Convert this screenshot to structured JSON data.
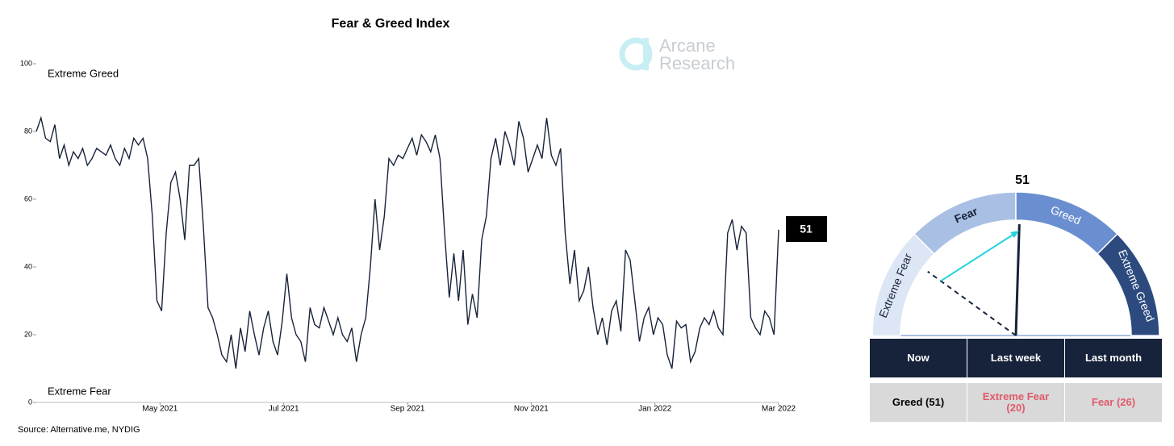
{
  "chart_data": [
    {
      "type": "line",
      "title": "Fear & Greed Index",
      "watermark": [
        "Arcane",
        "Research"
      ],
      "annotations": [
        "Extreme Greed",
        "Extreme Fear"
      ],
      "source": "Source: Alternative.me, NYDIG",
      "xlim": [
        "2021-03",
        "2022-03"
      ],
      "xticks": [
        {
          "value": "2021-05",
          "label": "May 2021"
        },
        {
          "value": "2021-07",
          "label": "Jul 2021"
        },
        {
          "value": "2021-09",
          "label": "Sep 2021"
        },
        {
          "value": "2021-11",
          "label": "Nov 2021"
        },
        {
          "value": "2022-01",
          "label": "Jan 2022"
        },
        {
          "value": "2022-03",
          "label": "Mar 2022"
        }
      ],
      "ylim": [
        0,
        100
      ],
      "yticks": [
        0,
        20,
        40,
        60,
        80,
        100
      ],
      "series": [
        {
          "name": "Fear & Greed Index",
          "color": "#17233a",
          "values": [
            80,
            84,
            78,
            77,
            82,
            72,
            76,
            70,
            74,
            72,
            75,
            70,
            72,
            75,
            74,
            73,
            76,
            72,
            70,
            75,
            72,
            78,
            76,
            78,
            72,
            55,
            30,
            27,
            50,
            65,
            68,
            60,
            48,
            70,
            70,
            72,
            52,
            28,
            25,
            20,
            14,
            12,
            20,
            10,
            22,
            15,
            27,
            20,
            14,
            22,
            27,
            18,
            14,
            24,
            38,
            25,
            20,
            18,
            12,
            28,
            23,
            22,
            28,
            24,
            20,
            25,
            20,
            18,
            22,
            12,
            20,
            25,
            40,
            60,
            45,
            55,
            72,
            70,
            73,
            72,
            75,
            78,
            73,
            79,
            77,
            74,
            79,
            72,
            50,
            31,
            44,
            30,
            45,
            23,
            32,
            25,
            48,
            55,
            72,
            78,
            70,
            80,
            76,
            70,
            83,
            78,
            68,
            72,
            76,
            72,
            84,
            73,
            70,
            75,
            50,
            35,
            45,
            30,
            33,
            40,
            28,
            20,
            25,
            17,
            27,
            30,
            21,
            45,
            42,
            30,
            18,
            25,
            28,
            20,
            25,
            23,
            14,
            10,
            24,
            22,
            23,
            12,
            15,
            22,
            25,
            23,
            27,
            22,
            20,
            50,
            54,
            45,
            52,
            50,
            25,
            22,
            20,
            27,
            25,
            20,
            51
          ]
        }
      ]
    },
    {
      "type": "gauge",
      "value": 51,
      "last_week": 20,
      "range": [
        0,
        100
      ],
      "bands": [
        {
          "name": "Extreme Fear",
          "from": 0,
          "to": 25,
          "color": "#dde6f4",
          "text_color": "#17233a"
        },
        {
          "name": "Fear",
          "from": 25,
          "to": 50,
          "color": "#a9c0e4",
          "text_color": "#17233a"
        },
        {
          "name": "Greed",
          "from": 50,
          "to": 75,
          "color": "#6a8fd0",
          "text_color": "#ffffff"
        },
        {
          "name": "Extreme Greed",
          "from": 75,
          "to": 100,
          "color": "#2c4a7e",
          "text_color": "#ffffff"
        }
      ]
    }
  ],
  "table": {
    "header": [
      "Now",
      "Last week",
      "Last month"
    ],
    "rows": [
      [
        "Greed (51)",
        "Extreme Fear\n(20)",
        "Fear (26)"
      ]
    ]
  }
}
